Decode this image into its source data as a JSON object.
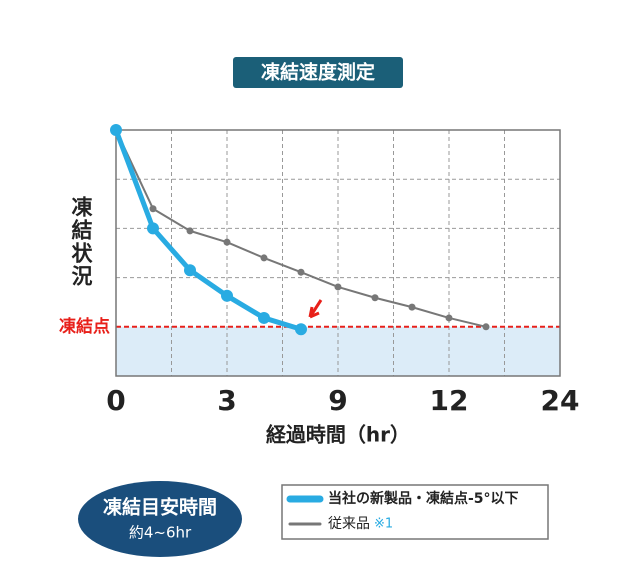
{
  "chart_data": {
    "type": "line",
    "title": "凍結速度測定",
    "y_label": "凍結状況",
    "x_label": "経過時間（hr）",
    "xlim": [
      0,
      24
    ],
    "xticks": [
      0,
      3,
      9,
      12,
      24
    ],
    "ylim": [
      0,
      5
    ],
    "yticks": [
      1,
      2,
      3,
      4,
      5
    ],
    "grid": true,
    "freeze_point": {
      "value": 1,
      "label": "凍結点",
      "color": "#e8201a",
      "fill": "#dcecf8"
    },
    "series": [
      {
        "name": "当社の新製品・凍結点-5°以下",
        "color": "#29abe2",
        "x": [
          0,
          1,
          2,
          3,
          5,
          7
        ],
        "values": [
          5,
          3.0,
          2.15,
          1.63,
          1.18,
          0.95
        ]
      },
      {
        "name": "従来品",
        "note": "※1",
        "color": "#777777",
        "x": [
          0,
          1,
          2,
          3,
          5,
          7,
          9,
          10,
          11,
          12,
          16
        ],
        "values": [
          5,
          3.4,
          2.95,
          2.72,
          2.4,
          2.11,
          1.81,
          1.59,
          1.4,
          1.18,
          1.0
        ]
      }
    ],
    "badge": {
      "title": "凍結目安時間",
      "text": "約4~6hr"
    }
  }
}
